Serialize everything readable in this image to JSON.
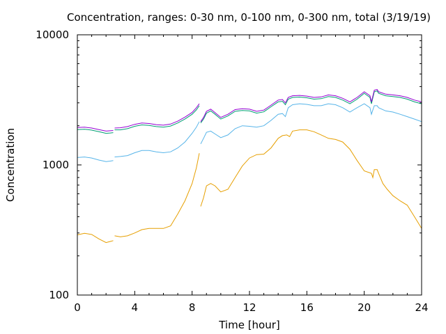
{
  "chart_data": {
    "type": "line",
    "title": "Concentration, ranges: 0-30 nm, 0-100 nm, 0-300 nm, total (3/19/19)",
    "xlabel": "Time [hour]",
    "ylabel": "Concentration",
    "xlim": [
      0,
      24
    ],
    "ylim": [
      100,
      10000
    ],
    "yscale": "log",
    "xticks": [
      0,
      4,
      8,
      12,
      16,
      20,
      24
    ],
    "xtick_labels": [
      "0",
      "4",
      "8",
      "12",
      "16",
      "20",
      "24"
    ],
    "yticks": [
      100,
      1000,
      10000
    ],
    "ytick_labels": [
      "100",
      "1000",
      "10000"
    ],
    "grid": false,
    "legend": "none",
    "series": [
      {
        "color": "#e69f00",
        "segments": [
          [
            [
              0,
              290
            ],
            [
              0.5,
              298
            ],
            [
              1,
              292
            ],
            [
              1.5,
              270
            ],
            [
              2,
              253
            ],
            [
              2.3,
              258
            ],
            [
              2.5,
              262
            ]
          ],
          [
            [
              2.6,
              285
            ],
            [
              3,
              280
            ],
            [
              3.5,
              285
            ],
            [
              4,
              300
            ],
            [
              4.5,
              318
            ],
            [
              5,
              325
            ],
            [
              5.5,
              325
            ],
            [
              6,
              325
            ],
            [
              6.5,
              340
            ],
            [
              7,
              420
            ],
            [
              7.5,
              530
            ],
            [
              8,
              720
            ],
            [
              8.3,
              950
            ],
            [
              8.5,
              1230
            ]
          ],
          [
            [
              8.6,
              480
            ],
            [
              8.8,
              560
            ],
            [
              9,
              690
            ],
            [
              9.3,
              720
            ],
            [
              9.6,
              690
            ],
            [
              10,
              620
            ],
            [
              10.5,
              650
            ],
            [
              11,
              800
            ],
            [
              11.5,
              980
            ],
            [
              12,
              1130
            ],
            [
              12.5,
              1200
            ],
            [
              13,
              1210
            ],
            [
              13.5,
              1350
            ],
            [
              14,
              1600
            ],
            [
              14.3,
              1680
            ],
            [
              14.6,
              1700
            ],
            [
              14.8,
              1650
            ],
            [
              15,
              1820
            ],
            [
              15.5,
              1860
            ],
            [
              16,
              1860
            ],
            [
              16.5,
              1800
            ],
            [
              17,
              1700
            ],
            [
              17.5,
              1600
            ],
            [
              18,
              1570
            ],
            [
              18.5,
              1500
            ],
            [
              19,
              1320
            ],
            [
              19.5,
              1080
            ],
            [
              20,
              900
            ],
            [
              20.5,
              860
            ],
            [
              20.6,
              800
            ],
            [
              20.7,
              920
            ],
            [
              20.9,
              920
            ],
            [
              21,
              860
            ],
            [
              21.3,
              720
            ],
            [
              21.6,
              650
            ],
            [
              22,
              580
            ],
            [
              22.5,
              530
            ],
            [
              23,
              490
            ],
            [
              23.5,
              400
            ],
            [
              24,
              325
            ]
          ]
        ]
      },
      {
        "color": "#56b4e9",
        "segments": [
          [
            [
              0,
              1140
            ],
            [
              0.5,
              1150
            ],
            [
              1,
              1130
            ],
            [
              1.5,
              1090
            ],
            [
              2,
              1060
            ],
            [
              2.3,
              1070
            ],
            [
              2.5,
              1080
            ]
          ],
          [
            [
              2.6,
              1150
            ],
            [
              3,
              1160
            ],
            [
              3.5,
              1180
            ],
            [
              4,
              1240
            ],
            [
              4.5,
              1290
            ],
            [
              5,
              1290
            ],
            [
              5.5,
              1260
            ],
            [
              6,
              1240
            ],
            [
              6.5,
              1260
            ],
            [
              7,
              1350
            ],
            [
              7.5,
              1500
            ],
            [
              8,
              1750
            ],
            [
              8.3,
              1950
            ],
            [
              8.5,
              2150
            ]
          ],
          [
            [
              8.6,
              1450
            ],
            [
              8.8,
              1600
            ],
            [
              9,
              1780
            ],
            [
              9.3,
              1820
            ],
            [
              9.6,
              1730
            ],
            [
              10,
              1620
            ],
            [
              10.5,
              1700
            ],
            [
              11,
              1900
            ],
            [
              11.5,
              2000
            ],
            [
              12,
              1980
            ],
            [
              12.5,
              1950
            ],
            [
              13,
              2000
            ],
            [
              13.5,
              2200
            ],
            [
              14,
              2450
            ],
            [
              14.3,
              2480
            ],
            [
              14.5,
              2350
            ],
            [
              14.7,
              2750
            ],
            [
              15,
              2900
            ],
            [
              15.5,
              2950
            ],
            [
              16,
              2920
            ],
            [
              16.5,
              2850
            ],
            [
              17,
              2850
            ],
            [
              17.5,
              2950
            ],
            [
              18,
              2900
            ],
            [
              18.5,
              2750
            ],
            [
              19,
              2550
            ],
            [
              19.5,
              2750
            ],
            [
              20,
              2950
            ],
            [
              20.4,
              2750
            ],
            [
              20.5,
              2450
            ],
            [
              20.7,
              2850
            ],
            [
              20.9,
              2850
            ],
            [
              21,
              2750
            ],
            [
              21.5,
              2600
            ],
            [
              22,
              2550
            ],
            [
              22.5,
              2450
            ],
            [
              23,
              2350
            ],
            [
              23.5,
              2250
            ],
            [
              24,
              2150
            ]
          ]
        ]
      },
      {
        "color": "#009e73",
        "segments": [
          [
            [
              0,
              1870
            ],
            [
              0.5,
              1880
            ],
            [
              1,
              1850
            ],
            [
              1.5,
              1800
            ],
            [
              2,
              1750
            ],
            [
              2.3,
              1760
            ],
            [
              2.5,
              1770
            ]
          ],
          [
            [
              2.6,
              1860
            ],
            [
              3,
              1860
            ],
            [
              3.5,
              1900
            ],
            [
              4,
              1980
            ],
            [
              4.5,
              2030
            ],
            [
              5,
              2010
            ],
            [
              5.5,
              1970
            ],
            [
              6,
              1950
            ],
            [
              6.5,
              1990
            ],
            [
              7,
              2100
            ],
            [
              7.5,
              2250
            ],
            [
              8,
              2450
            ],
            [
              8.3,
              2650
            ],
            [
              8.5,
              2850
            ]
          ],
          [
            [
              8.6,
              2100
            ],
            [
              8.8,
              2250
            ],
            [
              9,
              2500
            ],
            [
              9.3,
              2600
            ],
            [
              9.6,
              2450
            ],
            [
              10,
              2250
            ],
            [
              10.5,
              2380
            ],
            [
              11,
              2580
            ],
            [
              11.5,
              2620
            ],
            [
              12,
              2600
            ],
            [
              12.5,
              2500
            ],
            [
              13,
              2560
            ],
            [
              13.5,
              2800
            ],
            [
              14,
              3050
            ],
            [
              14.3,
              3080
            ],
            [
              14.5,
              2900
            ],
            [
              14.7,
              3200
            ],
            [
              15,
              3300
            ],
            [
              15.5,
              3320
            ],
            [
              16,
              3280
            ],
            [
              16.5,
              3200
            ],
            [
              17,
              3230
            ],
            [
              17.5,
              3350
            ],
            [
              18,
              3300
            ],
            [
              18.5,
              3150
            ],
            [
              19,
              2950
            ],
            [
              19.5,
              3200
            ],
            [
              20,
              3550
            ],
            [
              20.4,
              3300
            ],
            [
              20.5,
              2950
            ],
            [
              20.7,
              3650
            ],
            [
              20.9,
              3700
            ],
            [
              21,
              3550
            ],
            [
              21.5,
              3400
            ],
            [
              22,
              3350
            ],
            [
              22.5,
              3300
            ],
            [
              23,
              3200
            ],
            [
              23.5,
              3050
            ],
            [
              24,
              2950
            ]
          ]
        ]
      },
      {
        "color": "#9400d3",
        "segments": [
          [
            [
              0,
              1940
            ],
            [
              0.5,
              1950
            ],
            [
              1,
              1920
            ],
            [
              1.5,
              1870
            ],
            [
              2,
              1820
            ],
            [
              2.3,
              1830
            ],
            [
              2.5,
              1840
            ]
          ],
          [
            [
              2.6,
              1920
            ],
            [
              3,
              1930
            ],
            [
              3.5,
              1970
            ],
            [
              4,
              2050
            ],
            [
              4.5,
              2100
            ],
            [
              5,
              2080
            ],
            [
              5.5,
              2040
            ],
            [
              6,
              2020
            ],
            [
              6.5,
              2060
            ],
            [
              7,
              2170
            ],
            [
              7.5,
              2330
            ],
            [
              8,
              2530
            ],
            [
              8.3,
              2750
            ],
            [
              8.5,
              2950
            ]
          ],
          [
            [
              8.6,
              2150
            ],
            [
              8.8,
              2320
            ],
            [
              9,
              2580
            ],
            [
              9.3,
              2680
            ],
            [
              9.6,
              2520
            ],
            [
              10,
              2320
            ],
            [
              10.5,
              2450
            ],
            [
              11,
              2660
            ],
            [
              11.5,
              2700
            ],
            [
              12,
              2680
            ],
            [
              12.5,
              2580
            ],
            [
              13,
              2640
            ],
            [
              13.5,
              2880
            ],
            [
              14,
              3150
            ],
            [
              14.3,
              3180
            ],
            [
              14.5,
              3000
            ],
            [
              14.7,
              3300
            ],
            [
              15,
              3400
            ],
            [
              15.5,
              3420
            ],
            [
              16,
              3380
            ],
            [
              16.5,
              3300
            ],
            [
              17,
              3330
            ],
            [
              17.5,
              3450
            ],
            [
              18,
              3400
            ],
            [
              18.5,
              3250
            ],
            [
              19,
              3050
            ],
            [
              19.5,
              3300
            ],
            [
              20,
              3650
            ],
            [
              20.4,
              3400
            ],
            [
              20.5,
              3050
            ],
            [
              20.7,
              3750
            ],
            [
              20.9,
              3800
            ],
            [
              21,
              3650
            ],
            [
              21.5,
              3500
            ],
            [
              22,
              3450
            ],
            [
              22.5,
              3400
            ],
            [
              23,
              3300
            ],
            [
              23.5,
              3150
            ],
            [
              24,
              3050
            ]
          ]
        ]
      }
    ]
  }
}
